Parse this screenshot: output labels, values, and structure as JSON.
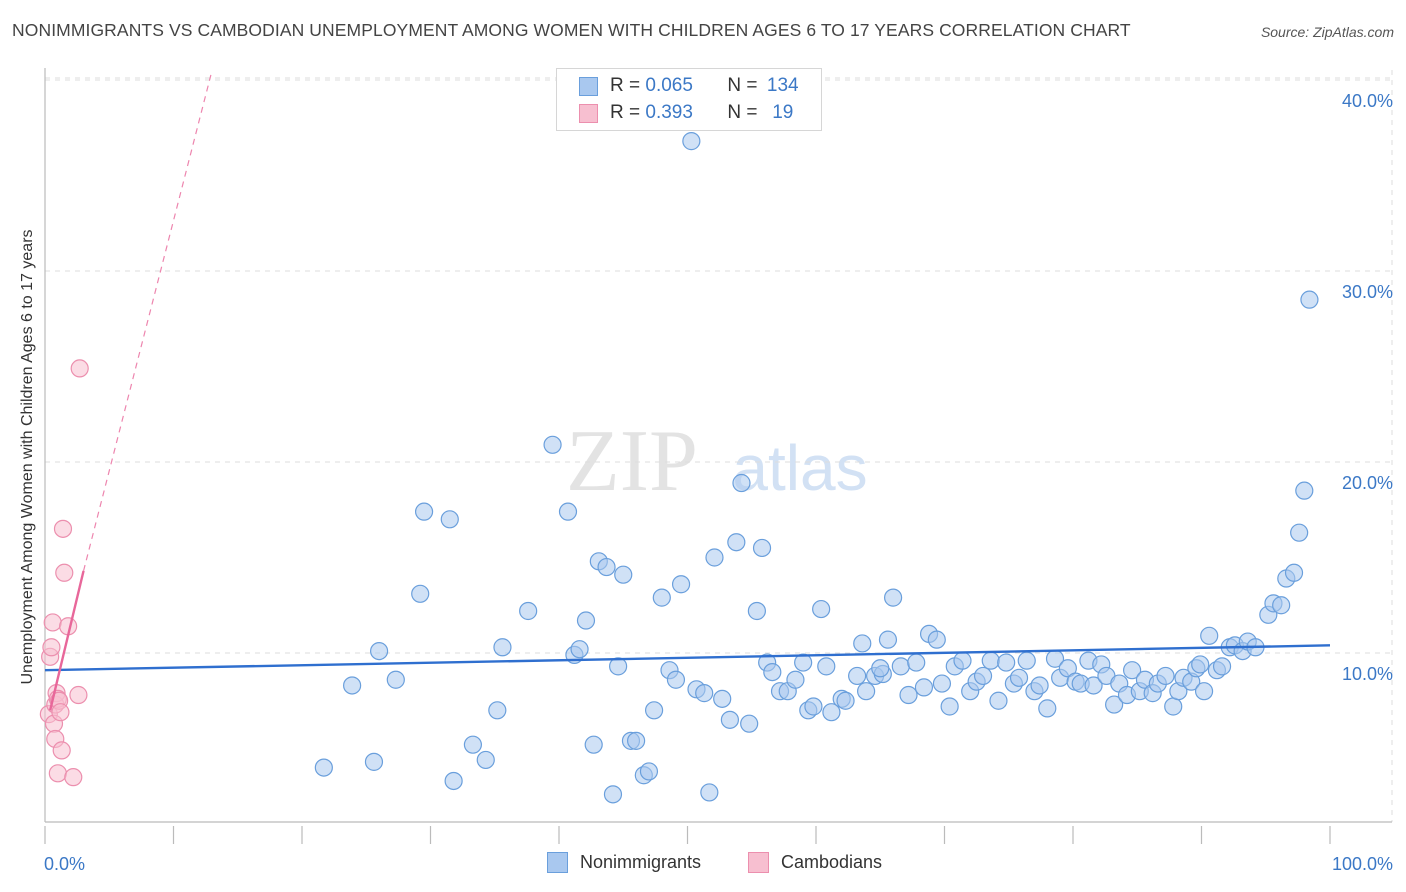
{
  "header": {
    "title": "NONIMMIGRANTS VS CAMBODIAN UNEMPLOYMENT AMONG WOMEN WITH CHILDREN AGES 6 TO 17 YEARS CORRELATION CHART",
    "source": "Source: ZipAtlas.com"
  },
  "watermark": {
    "part1": "ZIP",
    "part2": "atlas"
  },
  "legend": {
    "rows": [
      {
        "r_label": "R =",
        "r_value": "0.065",
        "n_label": "N =",
        "n_value": "134"
      },
      {
        "r_label": "R =",
        "r_value": "0.393",
        "n_label": "N =",
        "n_value": "19"
      }
    ]
  },
  "bottom_legend": {
    "series1": "Nonimmigrants",
    "series2": "Cambodians"
  },
  "colors": {
    "blue_fill": "#a9c8ef",
    "blue_stroke": "#6a9fdc",
    "blue_line": "#2f6fcf",
    "pink_fill": "#f7bfd0",
    "pink_stroke": "#ec8fae",
    "pink_line": "#e8679a",
    "tick_text": "#3b78c6",
    "grid": "#dddddd"
  },
  "chart_data": {
    "type": "scatter",
    "title": "NONIMMIGRANTS VS CAMBODIAN UNEMPLOYMENT AMONG WOMEN WITH CHILDREN AGES 6 TO 17 YEARS CORRELATION CHART",
    "xlabel": "",
    "ylabel": "Unemployment Among Women with Children Ages 6 to 17 years",
    "xlim": [
      0,
      100
    ],
    "ylim": [
      1,
      41
    ],
    "x_tick_labels": [
      "0.0%",
      "100.0%"
    ],
    "y_ticks": [
      10,
      20,
      30,
      40
    ],
    "y_tick_labels": [
      "10.0%",
      "20.0%",
      "30.0%",
      "40.0%"
    ],
    "grid": true,
    "legend_position": "top-center",
    "series": [
      {
        "name": "Nonimmigrants",
        "r": 0.065,
        "n": 134,
        "trend": {
          "x": [
            0,
            100
          ],
          "y": [
            9.1,
            10.4
          ]
        },
        "points": [
          [
            21.7,
            4.0
          ],
          [
            23.9,
            8.3
          ],
          [
            25.6,
            4.3
          ],
          [
            26.0,
            10.1
          ],
          [
            27.3,
            8.6
          ],
          [
            29.2,
            13.1
          ],
          [
            29.5,
            17.4
          ],
          [
            31.5,
            17.0
          ],
          [
            31.8,
            3.3
          ],
          [
            33.3,
            5.2
          ],
          [
            34.3,
            4.4
          ],
          [
            35.2,
            7.0
          ],
          [
            35.6,
            10.3
          ],
          [
            37.6,
            12.2
          ],
          [
            39.5,
            20.9
          ],
          [
            40.7,
            17.4
          ],
          [
            41.2,
            9.9
          ],
          [
            41.6,
            10.2
          ],
          [
            42.1,
            11.7
          ],
          [
            42.7,
            5.2
          ],
          [
            43.1,
            14.8
          ],
          [
            43.7,
            14.5
          ],
          [
            44.2,
            2.6
          ],
          [
            44.6,
            9.3
          ],
          [
            45.0,
            14.1
          ],
          [
            45.6,
            5.4
          ],
          [
            46.0,
            5.4
          ],
          [
            46.6,
            3.6
          ],
          [
            47.0,
            3.8
          ],
          [
            47.4,
            7.0
          ],
          [
            48.0,
            12.9
          ],
          [
            48.6,
            9.1
          ],
          [
            49.1,
            8.6
          ],
          [
            49.5,
            13.6
          ],
          [
            50.3,
            36.8
          ],
          [
            50.7,
            8.1
          ],
          [
            51.3,
            7.9
          ],
          [
            51.7,
            2.7
          ],
          [
            52.1,
            15.0
          ],
          [
            52.7,
            7.6
          ],
          [
            53.3,
            6.5
          ],
          [
            53.8,
            15.8
          ],
          [
            54.2,
            18.9
          ],
          [
            54.8,
            6.3
          ],
          [
            55.4,
            12.2
          ],
          [
            55.8,
            15.5
          ],
          [
            56.2,
            9.5
          ],
          [
            56.6,
            9.0
          ],
          [
            57.2,
            8.0
          ],
          [
            57.8,
            8.0
          ],
          [
            58.4,
            8.6
          ],
          [
            59.0,
            9.5
          ],
          [
            59.4,
            7.0
          ],
          [
            59.8,
            7.2
          ],
          [
            60.4,
            12.3
          ],
          [
            60.8,
            9.3
          ],
          [
            61.2,
            6.9
          ],
          [
            62.0,
            7.6
          ],
          [
            62.3,
            7.5
          ],
          [
            63.2,
            8.8
          ],
          [
            63.6,
            10.5
          ],
          [
            63.9,
            8.0
          ],
          [
            64.6,
            8.8
          ],
          [
            65.2,
            8.9
          ],
          [
            65.6,
            10.7
          ],
          [
            66.0,
            12.9
          ],
          [
            66.6,
            9.3
          ],
          [
            67.2,
            7.8
          ],
          [
            67.8,
            9.5
          ],
          [
            68.4,
            8.2
          ],
          [
            68.8,
            11.0
          ],
          [
            69.4,
            10.7
          ],
          [
            69.8,
            8.4
          ],
          [
            70.4,
            7.2
          ],
          [
            70.8,
            9.3
          ],
          [
            71.4,
            9.6
          ],
          [
            72.0,
            8.0
          ],
          [
            72.5,
            8.5
          ],
          [
            73.0,
            8.8
          ],
          [
            73.6,
            9.6
          ],
          [
            74.2,
            7.5
          ],
          [
            74.8,
            9.5
          ],
          [
            75.4,
            8.4
          ],
          [
            75.8,
            8.7
          ],
          [
            76.4,
            9.6
          ],
          [
            77.0,
            8.0
          ],
          [
            77.4,
            8.3
          ],
          [
            78.0,
            7.1
          ],
          [
            78.6,
            9.7
          ],
          [
            79.0,
            8.7
          ],
          [
            79.6,
            9.2
          ],
          [
            80.2,
            8.5
          ],
          [
            80.6,
            8.4
          ],
          [
            81.2,
            9.6
          ],
          [
            81.6,
            8.3
          ],
          [
            82.2,
            9.4
          ],
          [
            82.6,
            8.8
          ],
          [
            83.2,
            7.3
          ],
          [
            83.6,
            8.4
          ],
          [
            84.2,
            7.8
          ],
          [
            84.6,
            9.1
          ],
          [
            85.2,
            8.0
          ],
          [
            85.6,
            8.6
          ],
          [
            86.2,
            7.9
          ],
          [
            86.6,
            8.4
          ],
          [
            87.2,
            8.8
          ],
          [
            87.8,
            7.2
          ],
          [
            88.2,
            8.0
          ],
          [
            88.6,
            8.7
          ],
          [
            89.2,
            8.5
          ],
          [
            89.6,
            9.2
          ],
          [
            90.2,
            8.0
          ],
          [
            90.6,
            10.9
          ],
          [
            91.2,
            9.1
          ],
          [
            91.6,
            9.3
          ],
          [
            92.2,
            10.3
          ],
          [
            92.6,
            10.4
          ],
          [
            93.2,
            10.1
          ],
          [
            93.6,
            10.6
          ],
          [
            94.2,
            10.3
          ],
          [
            95.2,
            12.0
          ],
          [
            95.6,
            12.6
          ],
          [
            96.2,
            12.5
          ],
          [
            96.6,
            13.9
          ],
          [
            97.2,
            14.2
          ],
          [
            97.6,
            16.3
          ],
          [
            98.0,
            18.5
          ],
          [
            98.4,
            28.5
          ],
          [
            89.9,
            9.4
          ],
          [
            65.0,
            9.2
          ]
        ]
      },
      {
        "name": "Cambodians",
        "r": 0.393,
        "n": 19,
        "trend": {
          "x": [
            0.4,
            3.0
          ],
          "y": [
            7.0,
            14.3
          ]
        },
        "trend_extension": {
          "x": [
            3.0,
            13.0
          ],
          "y": [
            14.3,
            40.5
          ]
        },
        "points": [
          [
            0.3,
            6.8
          ],
          [
            0.4,
            9.8
          ],
          [
            0.5,
            10.3
          ],
          [
            0.6,
            11.6
          ],
          [
            0.7,
            6.3
          ],
          [
            0.8,
            7.3
          ],
          [
            0.8,
            5.5
          ],
          [
            0.9,
            7.9
          ],
          [
            1.0,
            3.7
          ],
          [
            1.0,
            7.6
          ],
          [
            1.1,
            7.5
          ],
          [
            1.2,
            6.9
          ],
          [
            1.3,
            4.9
          ],
          [
            1.4,
            16.5
          ],
          [
            1.5,
            14.2
          ],
          [
            1.8,
            11.4
          ],
          [
            2.2,
            3.5
          ],
          [
            2.6,
            7.8
          ],
          [
            2.7,
            24.9
          ]
        ]
      }
    ]
  }
}
